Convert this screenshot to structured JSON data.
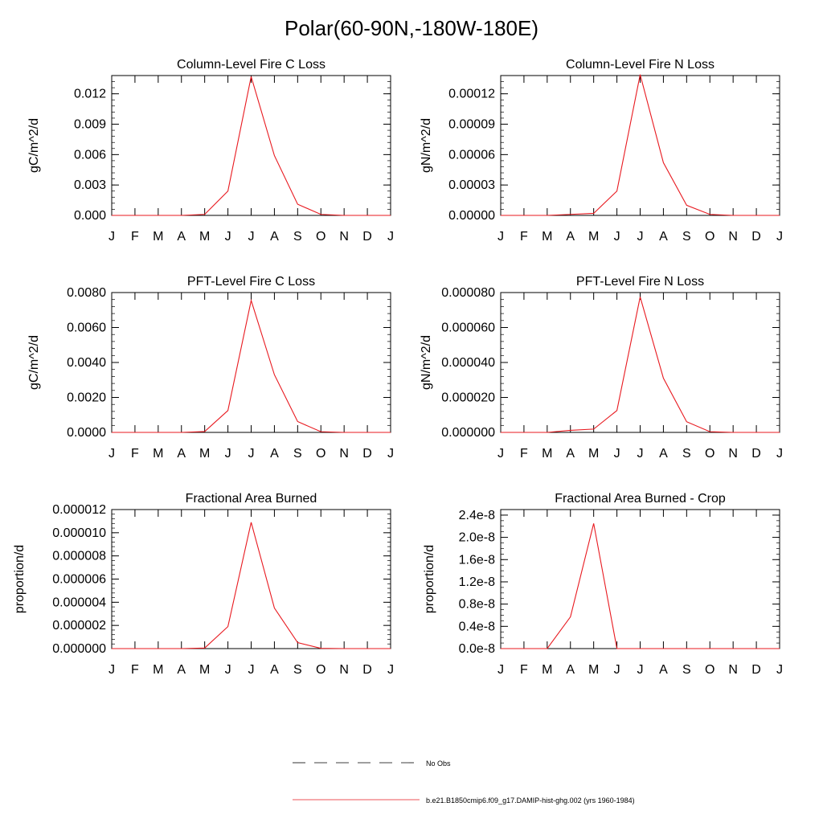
{
  "figure": {
    "title": "Polar(60-90N,-180W-180E)",
    "months": [
      "J",
      "F",
      "M",
      "A",
      "M",
      "J",
      "J",
      "A",
      "S",
      "O",
      "N",
      "D",
      "J"
    ],
    "colors": {
      "model": "#e8191f",
      "axis": "#000000",
      "obs": "#000000"
    }
  },
  "chart_data": [
    {
      "type": "line",
      "title": "Column-Level Fire C Loss",
      "ylabel": "gC/m^2/d",
      "ylim": [
        0,
        0.0138
      ],
      "yticks": [
        0,
        0.003,
        0.006,
        0.009,
        0.012
      ],
      "ytick_labels": [
        "0.000",
        "0.003",
        "0.006",
        "0.009",
        "0.012"
      ],
      "y_minor_step": 0.0006,
      "series": [
        {
          "values": [
            0,
            0,
            0,
            0,
            0.0001,
            0.0024,
            0.0137,
            0.0059,
            0.0011,
            0.0001,
            0,
            0,
            0
          ]
        }
      ]
    },
    {
      "type": "line",
      "title": "Column-Level Fire N Loss",
      "ylabel": "gN/m^2/d",
      "ylim": [
        0,
        0.000138
      ],
      "yticks": [
        0,
        3e-05,
        6e-05,
        9e-05,
        0.00012
      ],
      "ytick_labels": [
        "0.00000",
        "0.00003",
        "0.00006",
        "0.00009",
        "0.00012"
      ],
      "y_minor_step": 6e-06,
      "series": [
        {
          "values": [
            0,
            0,
            0,
            1e-06,
            2e-06,
            2.4e-05,
            0.000139,
            5.2e-05,
            1e-05,
            1e-06,
            0,
            0,
            0
          ]
        }
      ]
    },
    {
      "type": "line",
      "title": "PFT-Level Fire C Loss",
      "ylabel": "gC/m^2/d",
      "ylim": [
        0,
        0.008
      ],
      "yticks": [
        0,
        0.002,
        0.004,
        0.006,
        0.008
      ],
      "ytick_labels": [
        "0.0000",
        "0.0020",
        "0.0040",
        "0.0060",
        "0.0080"
      ],
      "y_minor_step": 0.0004,
      "series": [
        {
          "values": [
            0,
            0,
            0,
            0,
            5e-05,
            0.00125,
            0.00755,
            0.0033,
            0.00062,
            4e-05,
            0,
            0,
            0
          ]
        }
      ]
    },
    {
      "type": "line",
      "title": "PFT-Level Fire N Loss",
      "ylabel": "gN/m^2/d",
      "ylim": [
        0,
        8e-05
      ],
      "yticks": [
        0,
        2e-05,
        4e-05,
        6e-05,
        8e-05
      ],
      "ytick_labels": [
        "0.000000",
        "0.000020",
        "0.000040",
        "0.000060",
        "0.000080"
      ],
      "y_minor_step": 4e-06,
      "series": [
        {
          "values": [
            0,
            0,
            0,
            1.2e-06,
            1.9e-06,
            1.25e-05,
            7.75e-05,
            3.1e-05,
            6.1e-06,
            4e-07,
            0,
            0,
            0
          ]
        }
      ]
    },
    {
      "type": "line",
      "title": "Fractional Area Burned",
      "ylabel": "proportion/d",
      "ylim": [
        0,
        1.2e-05
      ],
      "yticks": [
        0,
        2e-06,
        4e-06,
        6e-06,
        8e-06,
        1e-05,
        1.2e-05
      ],
      "ytick_labels": [
        "0.000000",
        "0.000002",
        "0.000004",
        "0.000006",
        "0.000008",
        "0.000010",
        "0.000012"
      ],
      "y_minor_step": 4e-07,
      "series": [
        {
          "values": [
            0,
            0,
            0,
            0,
            5e-08,
            1.9e-06,
            1.09e-05,
            3.5e-06,
            5.2e-07,
            2e-08,
            0,
            0,
            0
          ]
        }
      ]
    },
    {
      "type": "line",
      "title": "Fractional Area Burned - Crop",
      "ylabel": "proportion/d",
      "ylim": [
        0,
        2.5e-08
      ],
      "yticks": [
        0,
        4e-09,
        8e-09,
        1.2e-08,
        1.6e-08,
        2e-08,
        2.4e-08
      ],
      "ytick_labels": [
        "0.0e-8",
        "0.4e-8",
        "0.8e-8",
        "1.2e-8",
        "1.6e-8",
        "2.0e-8",
        "2.4e-8"
      ],
      "y_minor_step": 1e-09,
      "series": [
        {
          "values": [
            0,
            0,
            0,
            5.7e-09,
            2.25e-08,
            0,
            0,
            0,
            0,
            0,
            0,
            0,
            0
          ]
        }
      ]
    }
  ],
  "legend": {
    "obs_label": "No Obs",
    "model_label": "b.e21.B1850cmip6.f09_g17.DAMIP-hist-ghg.002 (yrs 1960-1984)"
  }
}
